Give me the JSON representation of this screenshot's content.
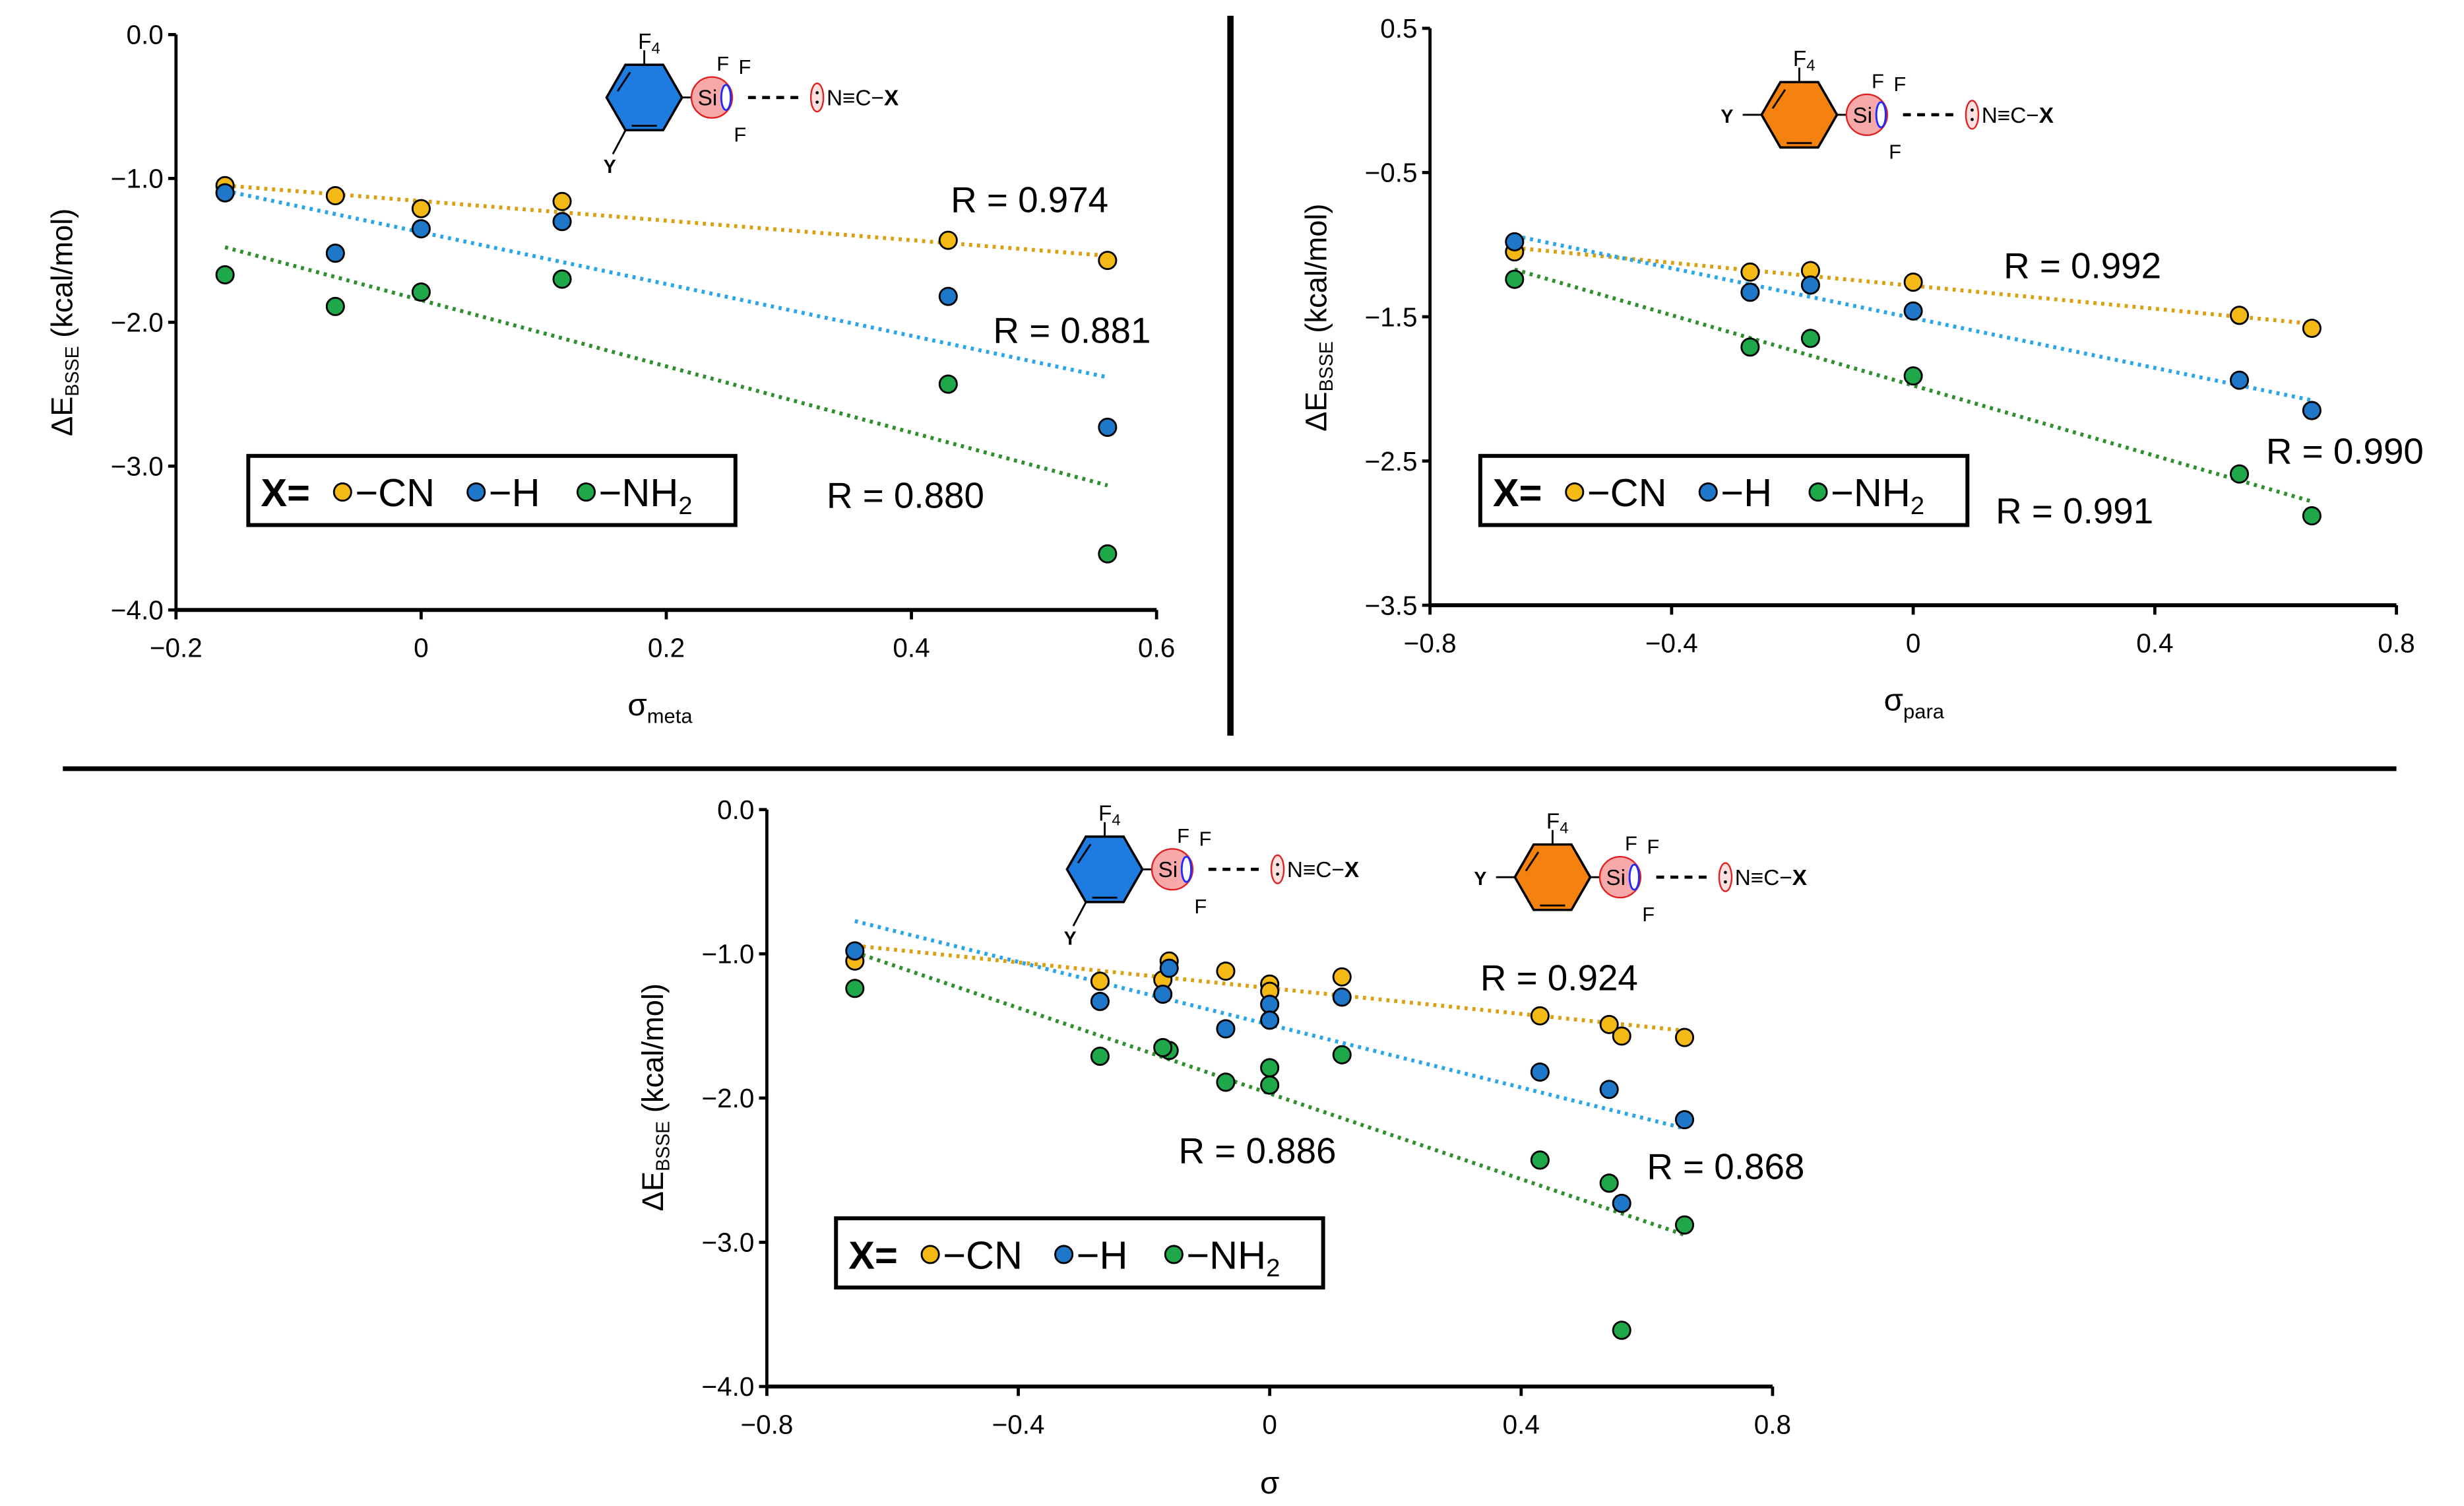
{
  "colors": {
    "CN": "#f5b915",
    "H": "#1f77c9",
    "NH2": "#1ea84a",
    "CN_line": "#d9a012",
    "H_line": "#2aa6e8",
    "NH2_line": "#2f8f2f",
    "meta_ring": "#1e7be0",
    "para_ring": "#f5820f",
    "si_fill": "#f7a9a9",
    "lone_pair": "#e02020"
  },
  "molecule": {
    "f4": "F4",
    "f": "F",
    "si": "Si",
    "y": "Y",
    "nitrile": "N≡C−X"
  },
  "legend": {
    "prefix": "X=",
    "items": [
      "−CN",
      "−H",
      "−NH2"
    ]
  },
  "chart_data": [
    {
      "type": "scatter",
      "title": "",
      "xlabel": "σmeta",
      "xlabel_main": "σ",
      "xlabel_sub": "meta",
      "ylabel": "ΔE BSSE (kcal/mol)",
      "xlim": [
        -0.2,
        0.6
      ],
      "ylim": [
        -4,
        0
      ],
      "xticks": [
        -0.2,
        0,
        0.2,
        0.4,
        0.6
      ],
      "xtick_labels": [
        "−0.2",
        "0",
        "0.2",
        "0.4",
        "0.6"
      ],
      "yticks": [
        0,
        -1,
        -2,
        -3,
        -4
      ],
      "ytick_labels": [
        "0.0",
        "−1.0",
        "−2.0",
        "−3.0",
        "−4.0"
      ],
      "x": [
        -0.16,
        -0.07,
        0,
        0.115,
        0.43,
        0.56
      ],
      "series": [
        {
          "name": "−CN",
          "key": "CN",
          "values": [
            -1.05,
            -1.12,
            -1.21,
            -1.16,
            -1.43,
            -1.57
          ],
          "R": "R = 0.974"
        },
        {
          "name": "−H",
          "key": "H",
          "values": [
            -1.1,
            -1.52,
            -1.35,
            -1.3,
            -1.82,
            -2.73
          ],
          "R": "R = 0.881"
        },
        {
          "name": "−NH2",
          "key": "NH2",
          "values": [
            -1.67,
            -1.89,
            -1.79,
            -1.7,
            -2.43,
            -3.61
          ],
          "R": "R = 0.880"
        }
      ],
      "trendline": "linear, dotted",
      "legend_position": "bottom-left"
    },
    {
      "type": "scatter",
      "title": "",
      "xlabel": "σpara",
      "xlabel_main": "σ",
      "xlabel_sub": "para",
      "ylabel": "ΔE BSSE (kcal/mol)",
      "xlim": [
        -0.8,
        0.8
      ],
      "ylim": [
        -3.5,
        0.5
      ],
      "xticks": [
        -0.8,
        -0.4,
        0,
        0.4,
        0.8
      ],
      "xtick_labels": [
        "−0.8",
        "−0.4",
        "0",
        "0.4",
        "0.8"
      ],
      "yticks": [
        0.5,
        -0.5,
        -1.5,
        -2.5,
        -3.5
      ],
      "ytick_labels": [
        "0.5",
        "−0.5",
        "−1.5",
        "−2.5",
        "−3.5"
      ],
      "x": [
        -0.66,
        -0.27,
        -0.17,
        0,
        0.54,
        0.66
      ],
      "series": [
        {
          "name": "−CN",
          "key": "CN",
          "values": [
            -1.05,
            -1.19,
            -1.18,
            -1.26,
            -1.49,
            -1.58
          ],
          "R": "R = 0.992"
        },
        {
          "name": "−H",
          "key": "H",
          "values": [
            -0.98,
            -1.33,
            -1.28,
            -1.46,
            -1.94,
            -2.15
          ],
          "R": "R = 0.990"
        },
        {
          "name": "−NH2",
          "key": "NH2",
          "values": [
            -1.24,
            -1.71,
            -1.65,
            -1.91,
            -2.59,
            -2.88
          ],
          "R": "R = 0.991"
        }
      ],
      "trendline": "linear, dotted",
      "legend_position": "bottom-left"
    },
    {
      "type": "scatter",
      "title": "",
      "xlabel": "σ",
      "xlabel_main": "σ",
      "xlabel_sub": "",
      "ylabel": "ΔE BSSE (kcal/mol)",
      "xlim": [
        -0.8,
        0.8
      ],
      "ylim": [
        -4,
        0
      ],
      "xticks": [
        -0.8,
        -0.4,
        0,
        0.4,
        0.8
      ],
      "xtick_labels": [
        "−0.8",
        "−0.4",
        "0",
        "0.4",
        "0.8"
      ],
      "yticks": [
        0,
        -1,
        -2,
        -3,
        -4
      ],
      "ytick_labels": [
        "0.0",
        "−1.0",
        "−2.0",
        "−3.0",
        "−4.0"
      ],
      "x": [
        -0.16,
        -0.07,
        0,
        0.115,
        0.43,
        0.56,
        -0.66,
        -0.27,
        -0.17,
        0,
        0.54,
        0.66
      ],
      "series": [
        {
          "name": "−CN",
          "key": "CN",
          "values": [
            -1.05,
            -1.12,
            -1.21,
            -1.16,
            -1.43,
            -1.57,
            -1.05,
            -1.19,
            -1.18,
            -1.26,
            -1.49,
            -1.58
          ],
          "R": "R = 0.924"
        },
        {
          "name": "−H",
          "key": "H",
          "values": [
            -1.1,
            -1.52,
            -1.35,
            -1.3,
            -1.82,
            -2.73,
            -0.98,
            -1.33,
            -1.28,
            -1.46,
            -1.94,
            -2.15
          ],
          "R": "R = 0.868"
        },
        {
          "name": "−NH2",
          "key": "NH2",
          "values": [
            -1.67,
            -1.89,
            -1.79,
            -1.7,
            -2.43,
            -3.61,
            -1.24,
            -1.71,
            -1.65,
            -1.91,
            -2.59,
            -2.88
          ],
          "R": "R = 0.886"
        }
      ],
      "trendline": "linear, dotted",
      "legend_position": "bottom-left"
    }
  ]
}
